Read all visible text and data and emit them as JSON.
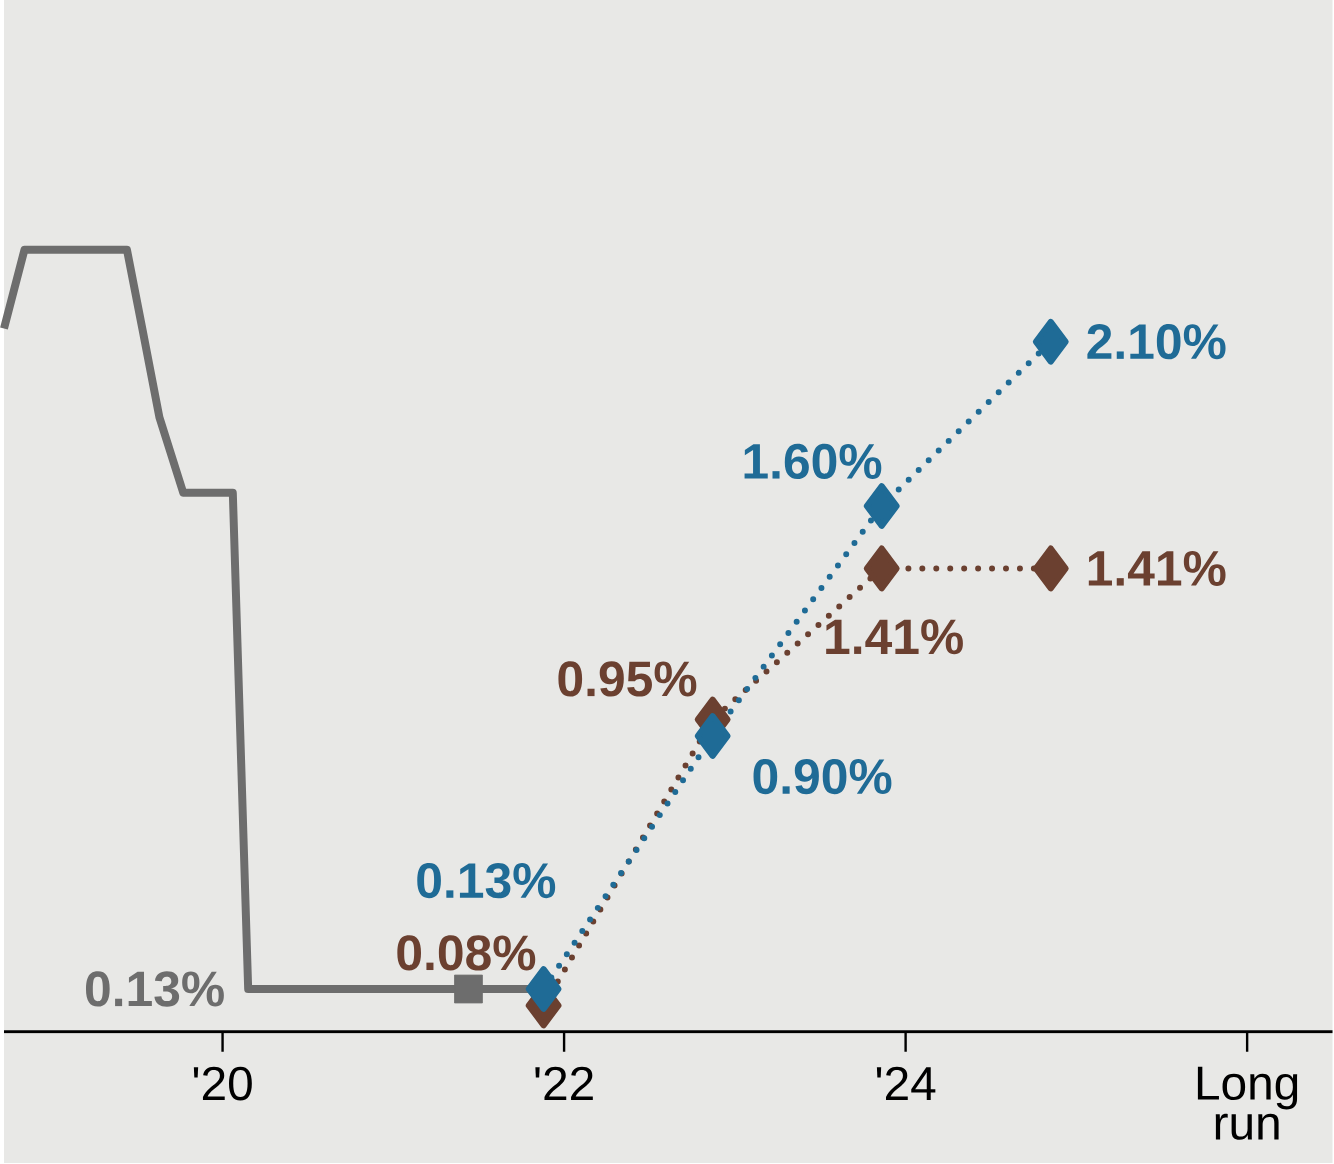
{
  "chart_data": {
    "type": "line",
    "xlim": [
      2018.72,
      2026.5
    ],
    "ylim": [
      0,
      3.14
    ],
    "xticks": [
      {
        "value": 2020,
        "label": "'20"
      },
      {
        "value": 2022,
        "label": "'22"
      },
      {
        "value": 2024,
        "label": "'24"
      },
      {
        "value": 2026,
        "label": "Long run"
      }
    ],
    "tick_labels": "x",
    "series": [
      {
        "color": "#6d6d6d",
        "marker": "none",
        "line_style": "solid",
        "x": [
          2018.72,
          2018.84,
          2018.93,
          2019.44,
          2019.53,
          2019.63,
          2019.77,
          2020.06,
          2020.15,
          2021.8
        ],
        "values": [
          2.14,
          2.38,
          2.38,
          2.38,
          2.14,
          1.87,
          1.64,
          1.64,
          0.13,
          0.13
        ],
        "value_labels": [
          null,
          null,
          null,
          null,
          null,
          null,
          null,
          null,
          "0.13%",
          null
        ]
      },
      {
        "type": "scatter",
        "color": "#6d6d6d",
        "marker": "square",
        "x": [
          2021.44
        ],
        "values": [
          0.13
        ]
      },
      {
        "color": "#6b4030",
        "marker": "diamond",
        "line_style": "dotted",
        "x": [
          2021.88,
          2022.87,
          2023.86,
          2024.85
        ],
        "values": [
          0.08,
          0.95,
          1.41,
          1.41
        ],
        "value_labels": [
          "0.08%",
          "0.95%",
          "1.41%",
          "1.41%"
        ]
      },
      {
        "color": "#1f6b96",
        "marker": "diamond",
        "line_style": "dotted",
        "x": [
          2021.88,
          2022.87,
          2023.86,
          2024.85
        ],
        "values": [
          0.13,
          0.9,
          1.6,
          2.1
        ],
        "value_labels": [
          "0.13%",
          "0.90%",
          "1.60%",
          "2.10%"
        ]
      }
    ]
  }
}
